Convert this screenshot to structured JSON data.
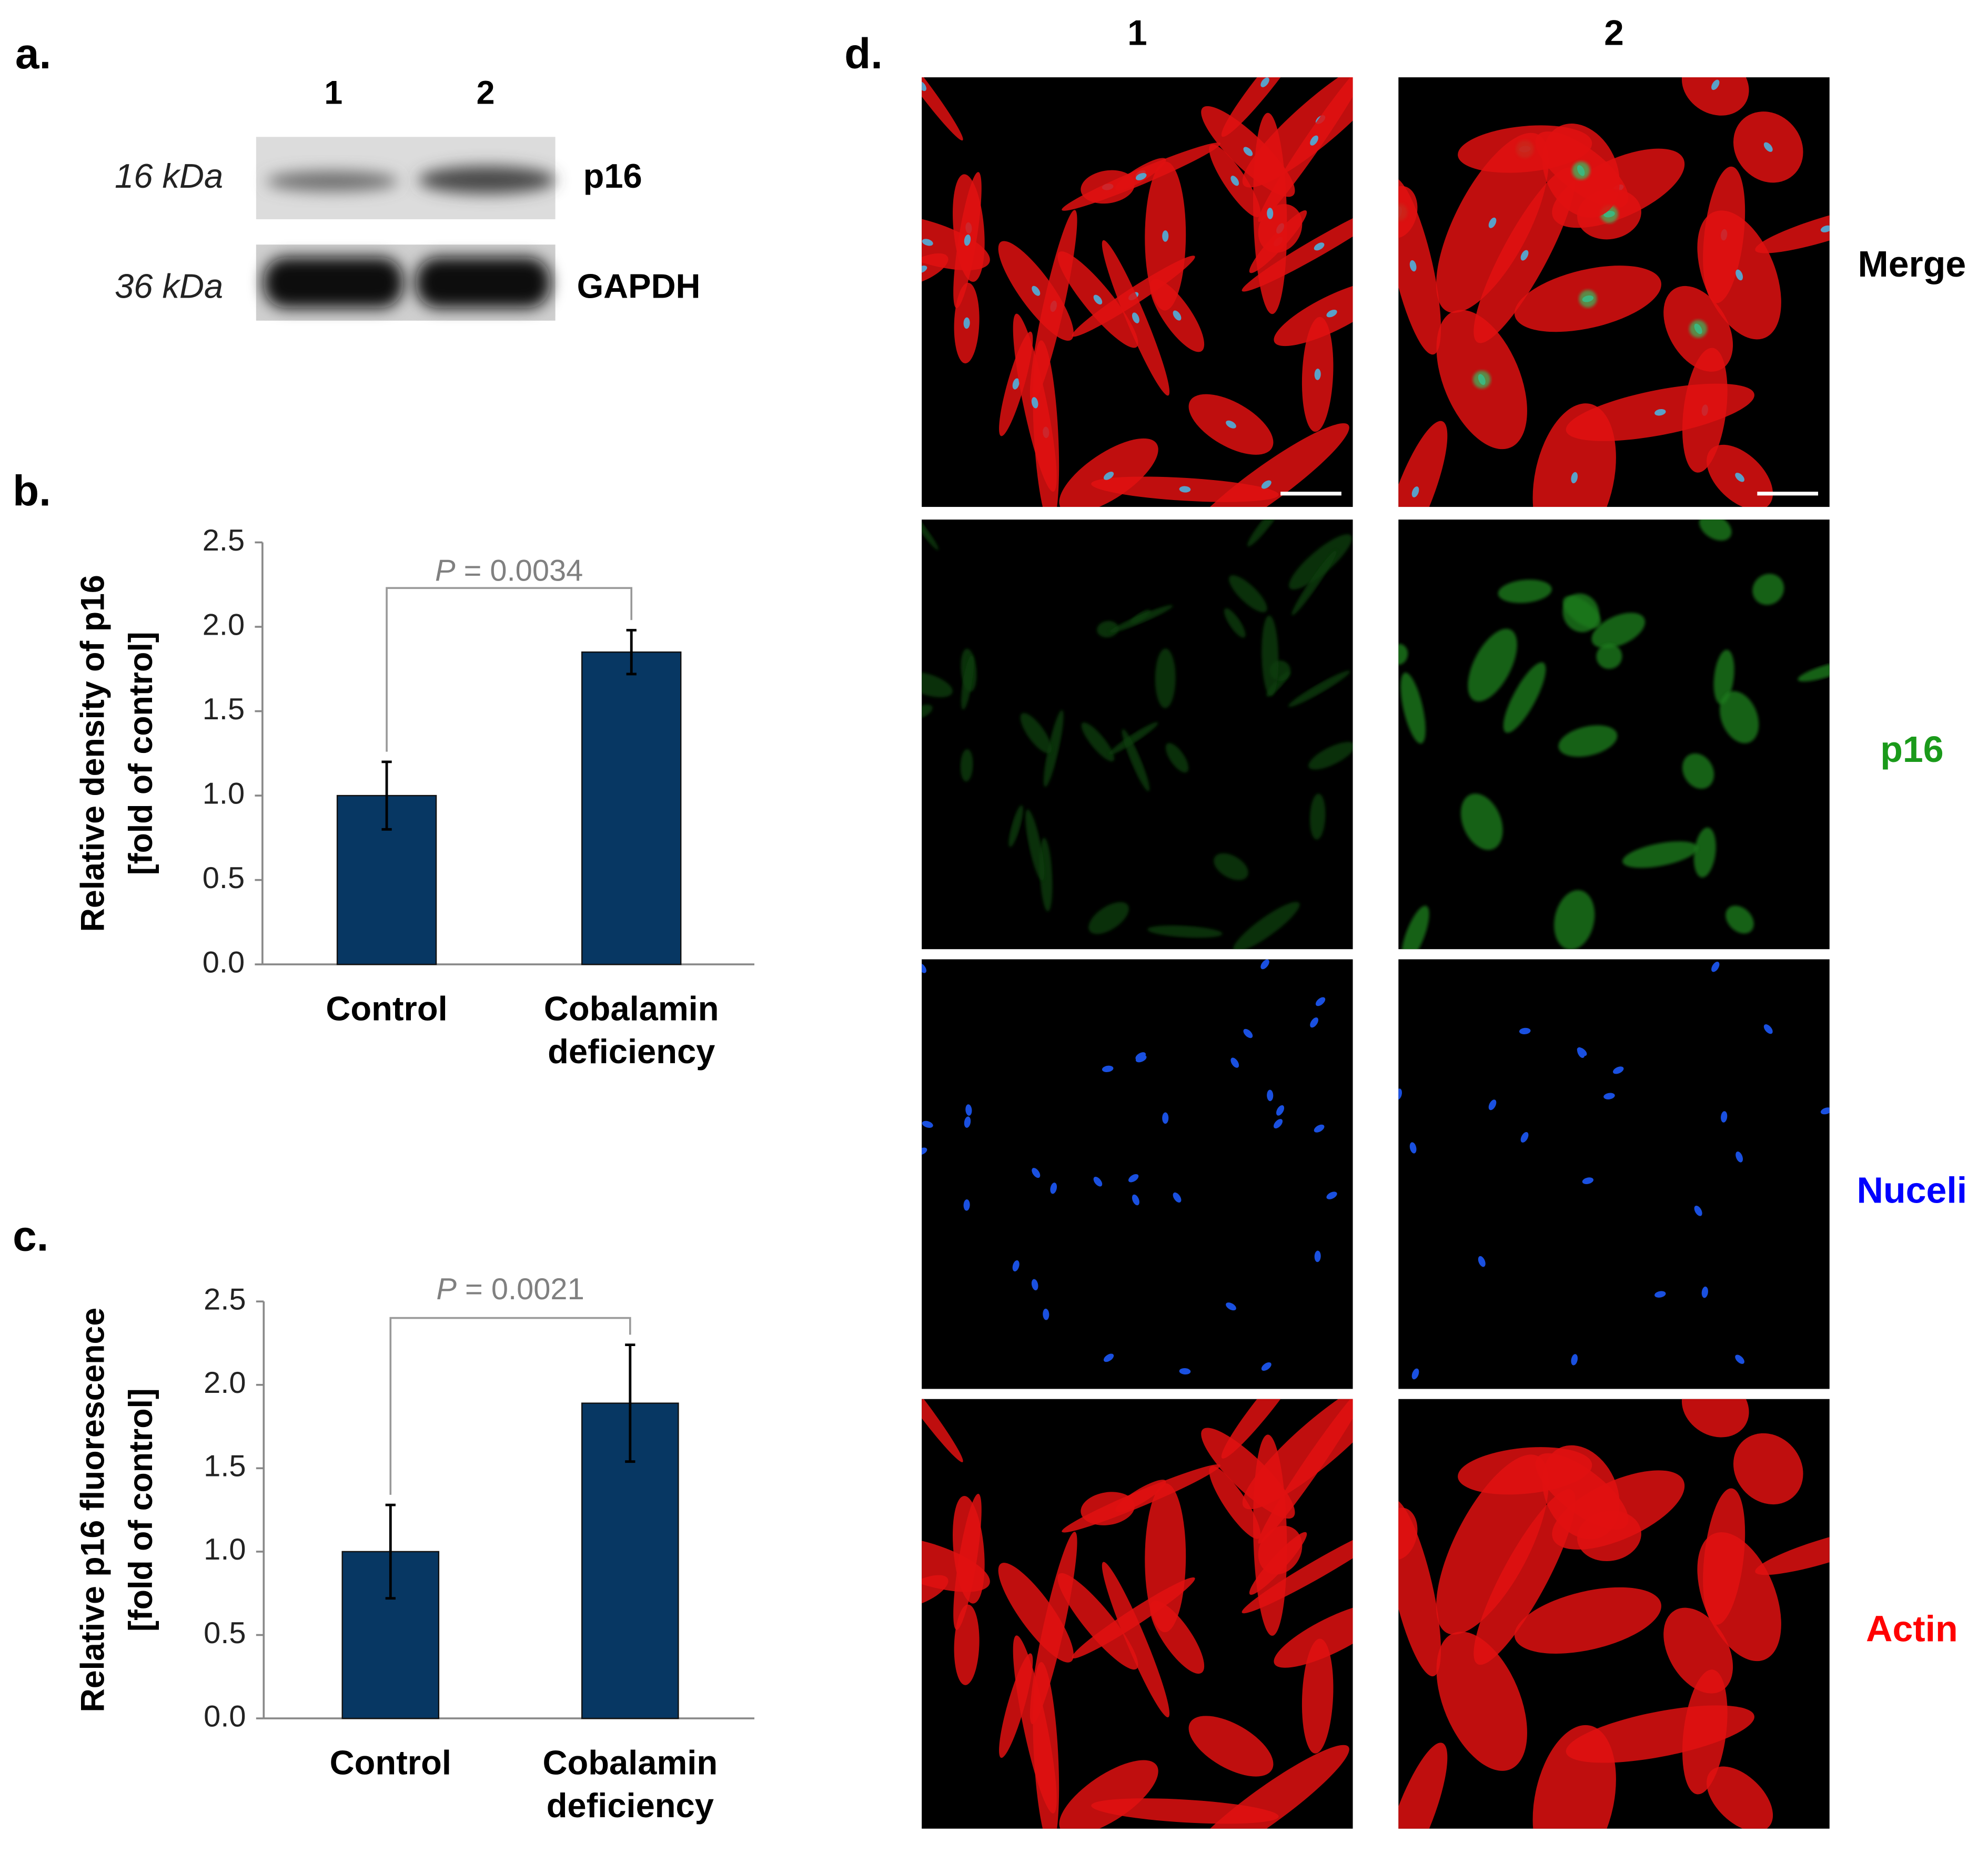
{
  "panel_labels": [
    "a.",
    "b.",
    "c.",
    "d."
  ],
  "western_blot": {
    "lanes": [
      "1",
      "2"
    ],
    "bands": [
      {
        "size": "16 kDa",
        "protein": "p16"
      },
      {
        "size": "36 kDa",
        "protein": "GAPDH"
      }
    ]
  },
  "microscopy": {
    "columns": [
      "1",
      "2"
    ],
    "rows": [
      {
        "name": "Merge",
        "color": "#000000"
      },
      {
        "name": "p16",
        "color": "#1a9a1a"
      },
      {
        "name": "Nuceli",
        "color": "#0000ff"
      },
      {
        "name": "Actin",
        "color": "#ff0000"
      }
    ]
  },
  "chart_data": [
    {
      "type": "bar",
      "y_label": [
        "Relative density of p16",
        "[fold of control]"
      ],
      "categories": [
        "Control",
        "Cobalamin deficiency"
      ],
      "series": [
        {
          "color": "#073763",
          "values": [
            1.0,
            1.85
          ],
          "errors": [
            0.2,
            0.13
          ]
        }
      ],
      "annotation": "P = 0.0034",
      "ylim": [
        0,
        2.5
      ],
      "yticks": [
        {
          "value": 0,
          "label": "0.0"
        },
        0.5,
        {
          "value": 1,
          "label": "1.0"
        },
        1.5,
        {
          "value": 2,
          "label": "2.0"
        },
        2.5
      ]
    },
    {
      "type": "bar",
      "y_label": [
        "Relative p16 fluorescence",
        "[fold of control]"
      ],
      "categories": [
        "Control",
        "Cobalamin deficiency"
      ],
      "series": [
        {
          "color": "#073763",
          "values": [
            1.0,
            1.89
          ],
          "errors": [
            0.28,
            0.35
          ]
        }
      ],
      "annotation": "P = 0.0021",
      "ylim": [
        0,
        2.5
      ],
      "yticks": [
        {
          "value": 0,
          "label": "0.0"
        },
        0.5,
        {
          "value": 1,
          "label": "1.0"
        },
        1.5,
        {
          "value": 2,
          "label": "2.0"
        },
        2.5
      ]
    }
  ]
}
